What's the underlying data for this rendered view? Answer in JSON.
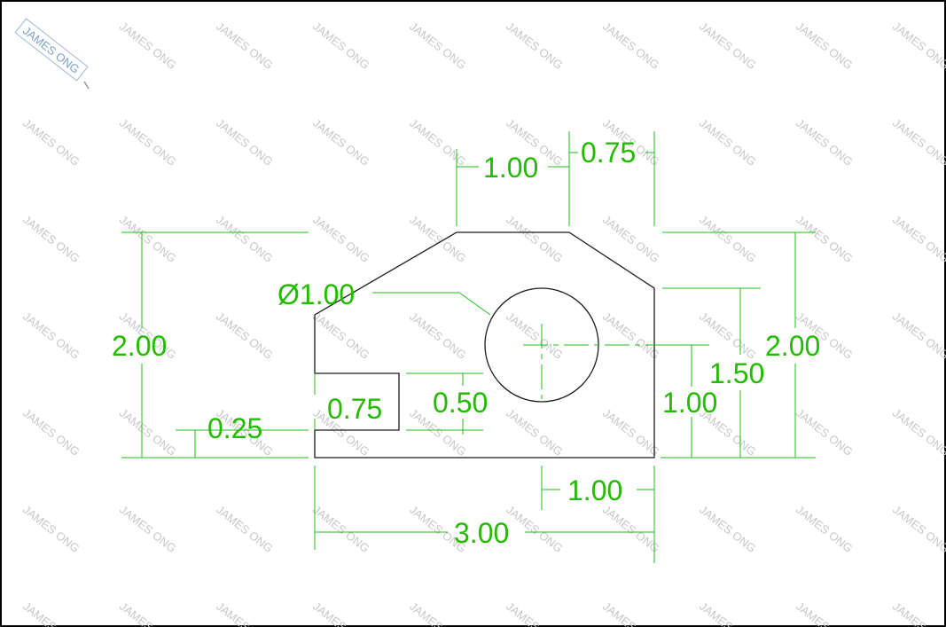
{
  "watermark": {
    "text": "JAMES ONG"
  },
  "dimensions": {
    "top_width": "1.00",
    "top_right_width": "0.75",
    "hole_diameter": "Ø1.00",
    "left_height": "2.00",
    "slot_bottom": "0.25",
    "slot_height": "0.75",
    "slot_depth": "0.50",
    "hole_center_height": "1.00",
    "right_upper": "1.50",
    "right_height": "2.00",
    "hole_center_offset": "1.00",
    "overall_width": "3.00"
  },
  "colors": {
    "dimension": "#22bb00",
    "outline": "#1a1a1a",
    "watermark": "#c8c8c8"
  }
}
